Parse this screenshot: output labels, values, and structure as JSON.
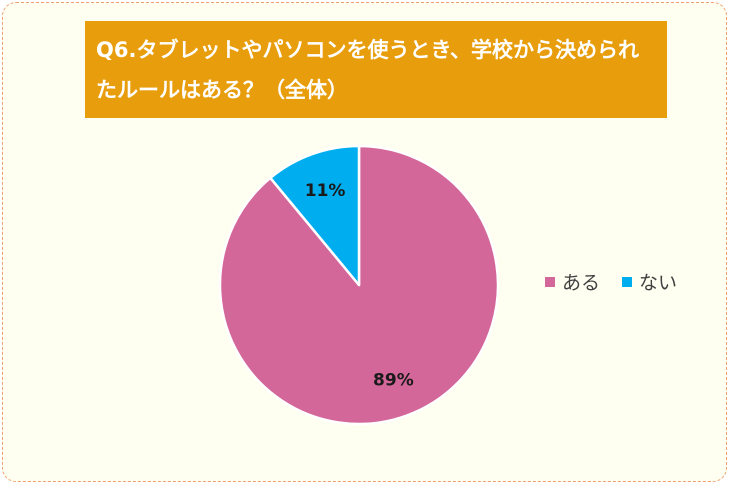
{
  "chart_data": {
    "type": "pie",
    "title": "Q6.タブレットやパソコンを使うとき、学校から決められたルールはある？（全体）",
    "categories": [
      "ある",
      "ない"
    ],
    "values": [
      89,
      11
    ],
    "labels": [
      "89%",
      "11%"
    ],
    "colors": [
      "#d4679a",
      "#00adef"
    ],
    "legend_position": "right"
  }
}
